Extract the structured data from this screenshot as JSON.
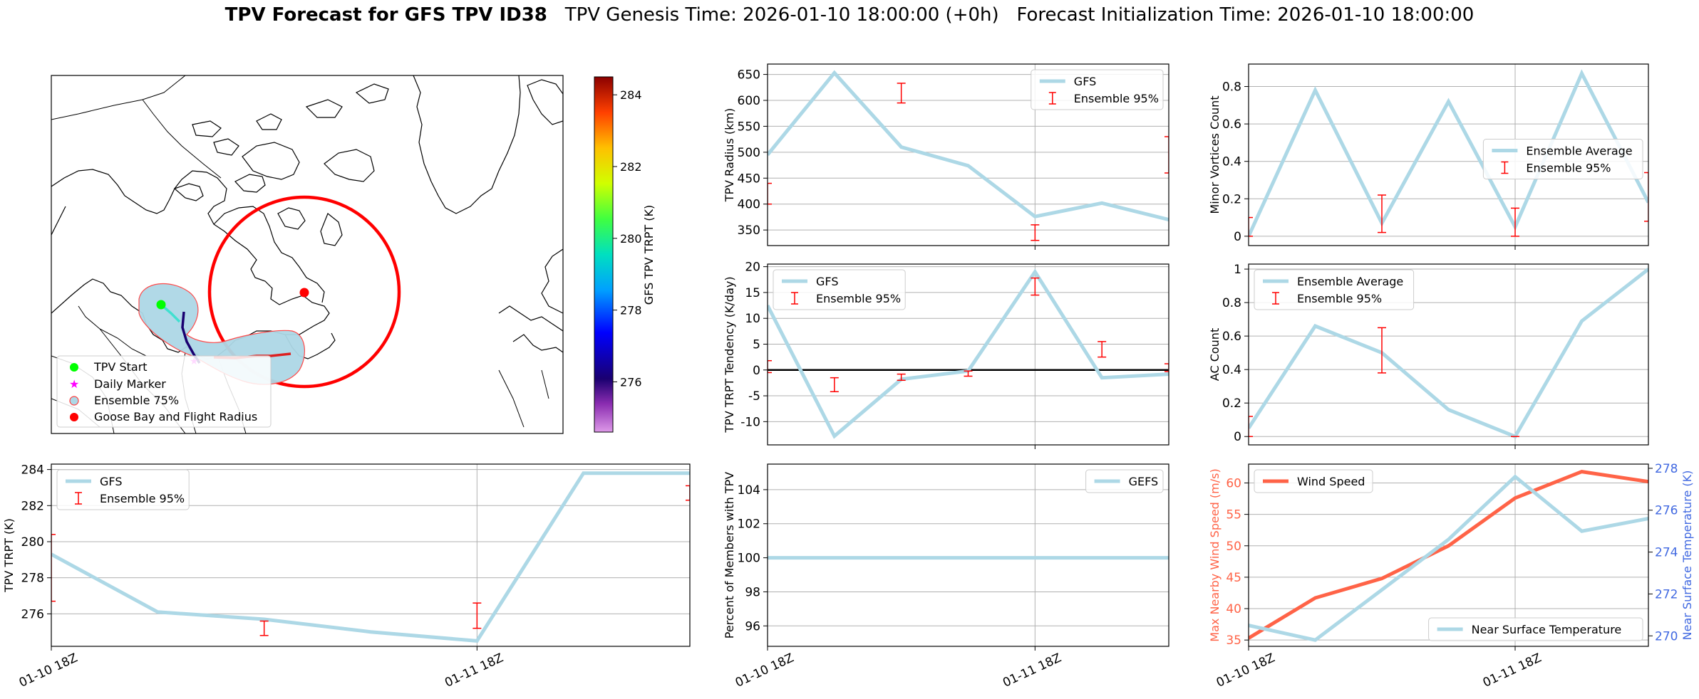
{
  "figure": {
    "title_bold": "TPV Forecast for GFS TPV ID38",
    "title_genesis": "TPV Genesis Time: 2026-01-10 18:00:00 (+0h)",
    "title_init": "Forecast Initialization Time: 2026-01-10 18:00:00"
  },
  "colors": {
    "gfs": "#add8e6",
    "ensemble_error": "#ff0000",
    "wind": "#ff6347",
    "temperature_axis": "#4169e1",
    "zero_line": "#000000"
  },
  "map": {
    "legend": [
      "TPV Start",
      "Daily Marker",
      "Ensemble 75%",
      "Goose Bay and Flight Radius"
    ],
    "legend_colors": [
      "#00ff00",
      "#ff00ff",
      "#add8e6",
      "#ff0000"
    ],
    "colorbar": {
      "label": "GFS TPV TRPT (K)",
      "ticks": [
        284,
        282,
        280,
        278,
        276
      ],
      "range": [
        274.6,
        284.5
      ]
    }
  },
  "chart_data": [
    {
      "id": "trpt",
      "type": "line",
      "ylabel": "TPV TRPT (K)",
      "xlim": [
        0,
        1.5
      ],
      "ylim": [
        274.2,
        284.3
      ],
      "yticks": [
        276,
        278,
        280,
        282,
        284
      ],
      "xticks": [
        0,
        1
      ],
      "xticklabels": [
        "01-10 18Z",
        "01-11 18Z"
      ],
      "legend": "upper left",
      "series": [
        {
          "name": "GFS",
          "x": [
            0,
            0.25,
            0.5,
            0.75,
            1.0,
            1.25,
            1.5
          ],
          "y": [
            279.3,
            276.1,
            275.7,
            275.0,
            274.5,
            283.8,
            283.8
          ]
        }
      ],
      "errorbars": {
        "name": "Ensemble 95%",
        "x": [
          0,
          0.5,
          1.0,
          1.5
        ],
        "low": [
          276.7,
          274.8,
          275.2,
          282.3
        ],
        "high": [
          280.4,
          275.6,
          276.6,
          283.1
        ]
      }
    },
    {
      "id": "radius",
      "type": "line",
      "ylabel": "TPV Radius (km)",
      "xlim": [
        0,
        1.5
      ],
      "ylim": [
        320,
        670
      ],
      "yticks": [
        350,
        400,
        450,
        500,
        550,
        600,
        650
      ],
      "xticks": [
        1
      ],
      "xticklabels": [],
      "legend": "upper right",
      "series": [
        {
          "name": "GFS",
          "x": [
            0,
            0.25,
            0.5,
            0.75,
            1.0,
            1.25,
            1.5
          ],
          "y": [
            495,
            653,
            510,
            474,
            376,
            402,
            370
          ]
        }
      ],
      "errorbars": {
        "name": "Ensemble 95%",
        "x": [
          0,
          0.5,
          1.0,
          1.5
        ],
        "low": [
          400,
          595,
          330,
          460
        ],
        "high": [
          440,
          633,
          360,
          530
        ]
      }
    },
    {
      "id": "minor",
      "type": "line",
      "ylabel": "Minor Vortices Count",
      "xlim": [
        0,
        1.5
      ],
      "ylim": [
        -0.05,
        0.92
      ],
      "yticks": [
        0.0,
        0.2,
        0.4,
        0.6,
        0.8
      ],
      "xticks": [
        1
      ],
      "xticklabels": [],
      "legend": "center right",
      "series": [
        {
          "name": "Ensemble Average",
          "x": [
            0,
            0.25,
            0.5,
            0.75,
            1.0,
            1.25,
            1.5
          ],
          "y": [
            0.0,
            0.78,
            0.07,
            0.72,
            0.05,
            0.87,
            0.18
          ]
        }
      ],
      "errorbars": {
        "name": "Ensemble 95%",
        "x": [
          0,
          0.5,
          1.0,
          1.5
        ],
        "low": [
          0.0,
          0.02,
          0.0,
          0.08
        ],
        "high": [
          0.1,
          0.22,
          0.15,
          0.34
        ]
      }
    },
    {
      "id": "tendency",
      "type": "line",
      "ylabel": "TPV TRPT Tendency (K/day)",
      "xlim": [
        0,
        1.5
      ],
      "ylim": [
        -14.5,
        20.5
      ],
      "yticks": [
        -10,
        -5,
        0,
        5,
        10,
        15,
        20
      ],
      "xticks": [
        1
      ],
      "xticklabels": [],
      "legend": "upper left",
      "series": [
        {
          "name": "GFS",
          "x": [
            0,
            0.25,
            0.5,
            0.75,
            1.0,
            1.25,
            1.5
          ],
          "y": [
            12.5,
            -12.8,
            -1.8,
            -0.2,
            19.0,
            -1.5,
            -0.8
          ]
        }
      ],
      "errorbars": {
        "name": "Ensemble 95%",
        "x": [
          0,
          0.25,
          0.5,
          0.75,
          1.0,
          1.25,
          1.5
        ],
        "low": [
          -0.5,
          -4.2,
          -2.0,
          -1.2,
          14.5,
          2.5,
          -0.3
        ],
        "high": [
          1.8,
          -1.5,
          -0.8,
          -0.2,
          17.8,
          5.5,
          1.2
        ]
      },
      "hline": 0
    },
    {
      "id": "ac",
      "type": "line",
      "ylabel": "AC Count",
      "xlim": [
        0,
        1.5
      ],
      "ylim": [
        -0.05,
        1.03
      ],
      "yticks": [
        0.0,
        0.2,
        0.4,
        0.6,
        0.8,
        1.0
      ],
      "xticks": [
        1
      ],
      "xticklabels": [],
      "legend": "upper left",
      "series": [
        {
          "name": "Ensemble Average",
          "x": [
            0,
            0.25,
            0.5,
            0.75,
            1.0,
            1.25,
            1.5
          ],
          "y": [
            0.05,
            0.66,
            0.5,
            0.16,
            0.0,
            0.69,
            1.0
          ]
        }
      ],
      "errorbars": {
        "name": "Ensemble 95%",
        "x": [
          0,
          0.5,
          1.0
        ],
        "low": [
          0.0,
          0.38,
          0.0
        ],
        "high": [
          0.12,
          0.65,
          0.0
        ]
      }
    },
    {
      "id": "percent",
      "type": "line",
      "ylabel": "Percent of Members with TPV",
      "xlim": [
        0,
        1.5
      ],
      "ylim": [
        94.8,
        105.5
      ],
      "yticks": [
        96,
        98,
        100,
        102,
        104
      ],
      "xticks": [
        0,
        1
      ],
      "xticklabels": [
        "01-10 18Z",
        "01-11 18Z"
      ],
      "legend": "upper right",
      "series": [
        {
          "name": "GEFS",
          "x": [
            0,
            0.25,
            0.5,
            0.75,
            1.0,
            1.25,
            1.5
          ],
          "y": [
            100,
            100,
            100,
            100,
            100,
            100,
            100
          ]
        }
      ]
    },
    {
      "id": "wind_temp",
      "type": "line",
      "ylabel": "Max Nearby Wind Speed (m/s)",
      "ylabel_right": "Near Surface Temperature (K)",
      "xlim": [
        0,
        1.5
      ],
      "ylim": [
        34,
        63
      ],
      "yticks": [
        35,
        40,
        45,
        50,
        55,
        60
      ],
      "ylim_right": [
        269.5,
        278.2
      ],
      "yticks_right": [
        270,
        272,
        274,
        276,
        278
      ],
      "xticks": [
        0,
        1
      ],
      "xticklabels": [
        "01-10 18Z",
        "01-11 18Z"
      ],
      "series": [
        {
          "name": "Wind Speed",
          "axis": "left",
          "legend": "upper left",
          "x": [
            0,
            0.25,
            0.5,
            0.75,
            1.0,
            1.25,
            1.5
          ],
          "y": [
            35.3,
            41.7,
            44.8,
            50.0,
            57.6,
            61.8,
            60.2
          ]
        },
        {
          "name": "Near Surface Temperature",
          "axis": "right",
          "legend": "lower right",
          "x": [
            0,
            0.25,
            0.5,
            0.75,
            1.0,
            1.25,
            1.5
          ],
          "y": [
            270.5,
            269.8,
            272.2,
            274.6,
            277.6,
            275.0,
            275.6
          ]
        }
      ]
    }
  ]
}
